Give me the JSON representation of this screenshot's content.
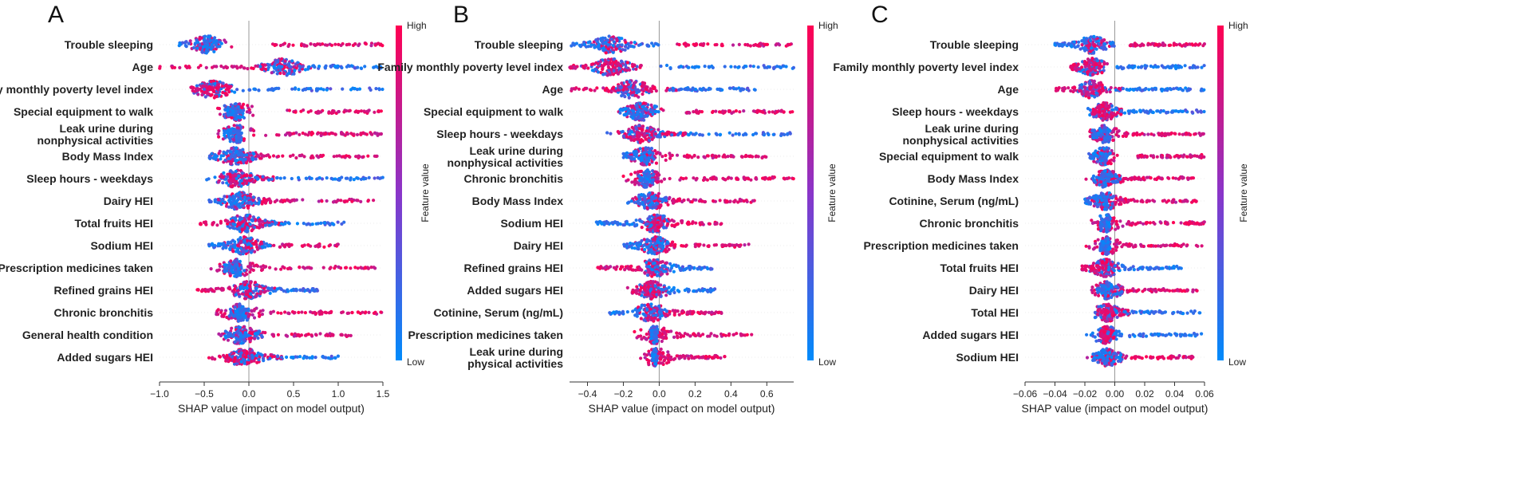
{
  "colors": {
    "high": "#ff0052",
    "low": "#008bfb",
    "axis": "#333333",
    "zero_line": "#999999",
    "grid": "#dddddd"
  },
  "colorbar": {
    "high_label": "High",
    "low_label": "Low",
    "title": "Feature value"
  },
  "chart_data": [
    {
      "type": "scatter",
      "panel_label": "A",
      "xlabel": "SHAP value (impact on model output)",
      "xlim": [
        -1.0,
        1.5
      ],
      "xticks": [
        -1.0,
        -0.5,
        0.0,
        0.5,
        1.0,
        1.5
      ],
      "xtick_labels": [
        "−1.0",
        "−0.5",
        "0.0",
        "0.5",
        "1.0",
        "1.5"
      ],
      "features": [
        {
          "name": "Trouble sleeping",
          "low_range": [
            -0.78,
            -0.3
          ],
          "high_range": [
            0.25,
            1.5
          ],
          "center": -0.46
        },
        {
          "name": "Age",
          "low_range": [
            0.1,
            1.5
          ],
          "high_range": [
            -1.0,
            0.2
          ],
          "center": 0.4
        },
        {
          "name": "Family monthly poverty level index",
          "low_range": [
            0.0,
            1.5
          ],
          "high_range": [
            -0.7,
            -0.2
          ],
          "center": -0.4
        },
        {
          "name": "Special equipment to walk",
          "low_range": [
            -0.28,
            -0.05
          ],
          "high_range": [
            0.4,
            1.5
          ],
          "center": -0.13
        },
        {
          "name": "Leak urine during nonphysical activities",
          "low_range": [
            -0.28,
            -0.08
          ],
          "high_range": [
            0.3,
            1.5
          ],
          "center": -0.13
        },
        {
          "name": "Body Mass Index",
          "low_range": [
            -0.45,
            0.1
          ],
          "high_range": [
            -0.1,
            1.45
          ],
          "center": -0.15
        },
        {
          "name": "Sleep hours - weekdays",
          "low_range": [
            -0.15,
            1.5
          ],
          "high_range": [
            -0.35,
            0.3
          ],
          "center": -0.15
        },
        {
          "name": "Dairy HEI",
          "low_range": [
            -0.45,
            0.15
          ],
          "high_range": [
            -0.1,
            1.4
          ],
          "center": -0.1
        },
        {
          "name": "Total fruits HEI",
          "low_range": [
            -0.2,
            1.1
          ],
          "high_range": [
            -0.55,
            0.4
          ],
          "center": -0.05
        },
        {
          "name": "Sodium HEI",
          "low_range": [
            -0.45,
            0.25
          ],
          "high_range": [
            -0.1,
            1.0
          ],
          "center": -0.05
        },
        {
          "name": "Prescription medicines taken",
          "low_range": [
            -0.28,
            -0.05
          ],
          "high_range": [
            -0.05,
            1.45
          ],
          "center": -0.13
        },
        {
          "name": "Refined grains HEI",
          "low_range": [
            -0.1,
            0.8
          ],
          "high_range": [
            -0.6,
            0.3
          ],
          "center": 0.0
        },
        {
          "name": "Chronic bronchitis",
          "low_range": [
            -0.22,
            0.0
          ],
          "high_range": [
            0.05,
            1.5
          ],
          "center": -0.1
        },
        {
          "name": "General health condition",
          "low_range": [
            -0.3,
            0.15
          ],
          "high_range": [
            0.0,
            1.15
          ],
          "center": -0.1
        },
        {
          "name": "Added sugars HEI",
          "low_range": [
            -0.1,
            1.0
          ],
          "high_range": [
            -0.45,
            0.4
          ],
          "center": -0.05
        }
      ]
    },
    {
      "type": "scatter",
      "panel_label": "B",
      "xlabel": "SHAP value (impact on model output)",
      "xlim": [
        -0.5,
        0.75
      ],
      "xticks": [
        -0.4,
        -0.2,
        0.0,
        0.2,
        0.4,
        0.6
      ],
      "xtick_labels": [
        "−0.4",
        "−0.2",
        "0.0",
        "0.2",
        "0.4",
        "0.6"
      ],
      "features": [
        {
          "name": "Trouble sleeping",
          "low_range": [
            -0.5,
            0.0
          ],
          "high_range": [
            0.1,
            0.75
          ],
          "center": -0.27
        },
        {
          "name": "Family monthly poverty level index",
          "low_range": [
            0.0,
            0.75
          ],
          "high_range": [
            -0.5,
            -0.1
          ],
          "center": -0.27
        },
        {
          "name": "Age",
          "low_range": [
            0.05,
            0.55
          ],
          "high_range": [
            -0.5,
            0.1
          ],
          "center": -0.15
        },
        {
          "name": "Special equipment to walk",
          "low_range": [
            -0.22,
            0.0
          ],
          "high_range": [
            0.15,
            0.75
          ],
          "center": -0.1
        },
        {
          "name": "Sleep hours - weekdays",
          "low_range": [
            -0.05,
            0.75
          ],
          "high_range": [
            -0.25,
            0.15
          ],
          "center": -0.1
        },
        {
          "name": "Leak urine during nonphysical activities",
          "low_range": [
            -0.2,
            -0.03
          ],
          "high_range": [
            0.05,
            0.6
          ],
          "center": -0.07
        },
        {
          "name": "Chronic bronchitis",
          "low_range": [
            -0.12,
            -0.03
          ],
          "high_range": [
            0.1,
            0.75
          ],
          "center": -0.07
        },
        {
          "name": "Body Mass Index",
          "low_range": [
            -0.18,
            0.05
          ],
          "high_range": [
            -0.05,
            0.55
          ],
          "center": -0.05
        },
        {
          "name": "Sodium HEI",
          "low_range": [
            -0.35,
            0.0
          ],
          "high_range": [
            -0.05,
            0.35
          ],
          "center": -0.02
        },
        {
          "name": "Dairy HEI",
          "low_range": [
            -0.2,
            0.05
          ],
          "high_range": [
            -0.05,
            0.5
          ],
          "center": -0.02
        },
        {
          "name": "Refined grains HEI",
          "low_range": [
            -0.05,
            0.3
          ],
          "high_range": [
            -0.35,
            0.05
          ],
          "center": -0.02
        },
        {
          "name": "Added sugars HEI",
          "low_range": [
            -0.05,
            0.32
          ],
          "high_range": [
            -0.18,
            0.05
          ],
          "center": -0.04
        },
        {
          "name": "Cotinine, Serum (ng/mL)",
          "low_range": [
            -0.28,
            0.05
          ],
          "high_range": [
            -0.05,
            0.35
          ],
          "center": -0.05
        },
        {
          "name": "Prescription medicines taken",
          "low_range": [
            -0.05,
            -0.01
          ],
          "high_range": [
            -0.02,
            0.52
          ],
          "center": -0.03
        },
        {
          "name": "Leak urine during physical activities",
          "low_range": [
            -0.04,
            -0.01
          ],
          "high_range": [
            0.0,
            0.38
          ],
          "center": -0.02
        }
      ]
    },
    {
      "type": "scatter",
      "panel_label": "C",
      "xlabel": "SHAP value (impact on model output)",
      "xlim": [
        -0.06,
        0.06
      ],
      "xticks": [
        -0.06,
        -0.04,
        -0.02,
        0.0,
        0.02,
        0.04,
        0.06
      ],
      "xtick_labels": [
        "−0.06",
        "−0.04",
        "−0.02",
        "0.00",
        "0.02",
        "0.04",
        "0.06"
      ],
      "features": [
        {
          "name": "Trouble sleeping",
          "low_range": [
            -0.04,
            0.0
          ],
          "high_range": [
            0.01,
            0.06
          ],
          "center": -0.015
        },
        {
          "name": "Family monthly poverty level index",
          "low_range": [
            0.0,
            0.06
          ],
          "high_range": [
            -0.03,
            -0.005
          ],
          "center": -0.015
        },
        {
          "name": "Age",
          "low_range": [
            0.0,
            0.06
          ],
          "high_range": [
            -0.04,
            0.005
          ],
          "center": -0.015
        },
        {
          "name": "Sleep hours - weekdays",
          "low_range": [
            0.0,
            0.06
          ],
          "high_range": [
            -0.015,
            0.005
          ],
          "center": -0.007
        },
        {
          "name": "Leak urine during nonphysical activities",
          "low_range": [
            -0.015,
            -0.003
          ],
          "high_range": [
            0.005,
            0.06
          ],
          "center": -0.007
        },
        {
          "name": "Special equipment to walk",
          "low_range": [
            -0.018,
            -0.003
          ],
          "high_range": [
            0.015,
            0.06
          ],
          "center": -0.007
        },
        {
          "name": "Body Mass Index",
          "low_range": [
            -0.015,
            0.005
          ],
          "high_range": [
            -0.005,
            0.055
          ],
          "center": -0.006
        },
        {
          "name": "Cotinine, Serum (ng/mL)",
          "low_range": [
            -0.02,
            0.0
          ],
          "high_range": [
            0.0,
            0.055
          ],
          "center": -0.006
        },
        {
          "name": "Chronic bronchitis",
          "low_range": [
            -0.01,
            -0.003
          ],
          "high_range": [
            0.008,
            0.06
          ],
          "center": -0.005
        },
        {
          "name": "Prescription medicines taken",
          "low_range": [
            -0.01,
            -0.003
          ],
          "high_range": [
            -0.002,
            0.06
          ],
          "center": -0.005
        },
        {
          "name": "Total fruits HEI",
          "low_range": [
            -0.005,
            0.045
          ],
          "high_range": [
            -0.022,
            0.003
          ],
          "center": -0.006
        },
        {
          "name": "Dairy HEI",
          "low_range": [
            -0.012,
            0.005
          ],
          "high_range": [
            -0.003,
            0.055
          ],
          "center": -0.005
        },
        {
          "name": "Total HEI",
          "low_range": [
            -0.005,
            0.058
          ],
          "high_range": [
            -0.012,
            0.01
          ],
          "center": -0.005
        },
        {
          "name": "Added sugars HEI",
          "low_range": [
            -0.005,
            0.058
          ],
          "high_range": [
            -0.01,
            0.0
          ],
          "center": -0.006
        },
        {
          "name": "Sodium HEI",
          "low_range": [
            -0.015,
            0.005
          ],
          "high_range": [
            -0.005,
            0.055
          ],
          "center": -0.005
        }
      ]
    }
  ]
}
